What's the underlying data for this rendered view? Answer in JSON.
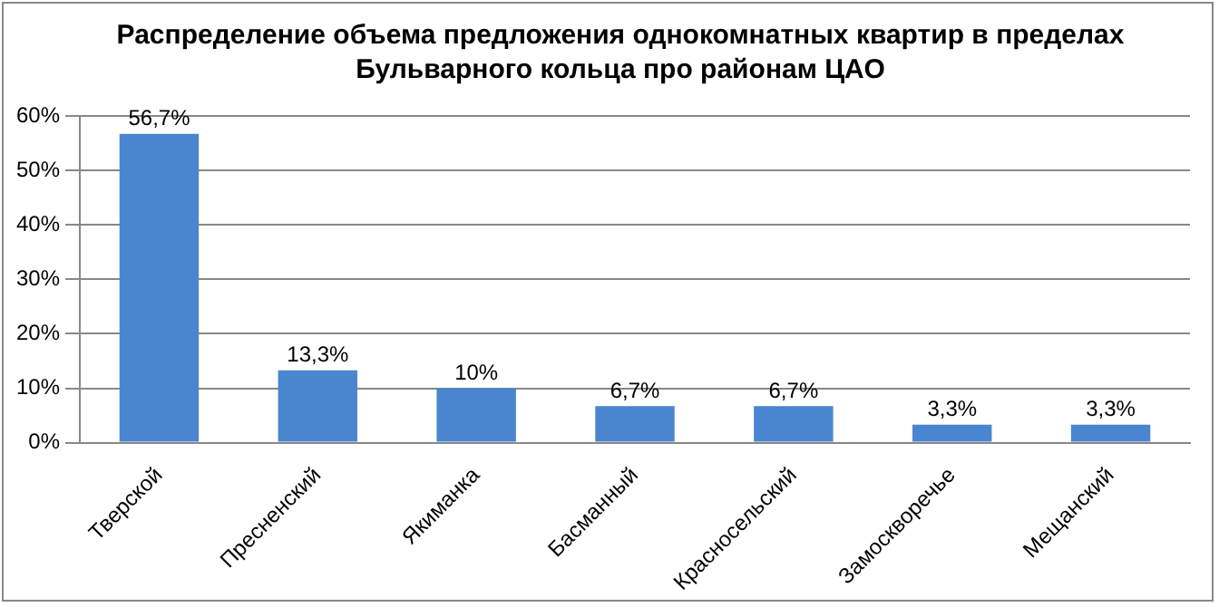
{
  "chart_data": {
    "type": "bar",
    "title": "Распределение объема предложения однокомнатных квартир в пределах Бульварного кольца про районам ЦАО",
    "categories": [
      "Тверской",
      "Пресненский",
      "Якиманка",
      "Басманный",
      "Красносельский",
      "Замоскворечье",
      "Мещанский"
    ],
    "values": [
      56.7,
      13.3,
      10,
      6.7,
      6.7,
      3.3,
      3.3
    ],
    "value_labels": [
      "56,7%",
      "13,3%",
      "10%",
      "6,7%",
      "6,7%",
      "3,3%",
      "3,3%"
    ],
    "color": "#4a86cf",
    "ylim": [
      0,
      60
    ],
    "yticks": [
      {
        "value": 0,
        "label": "0%"
      },
      {
        "value": 10,
        "label": "10%"
      },
      {
        "value": 20,
        "label": "20%"
      },
      {
        "value": 30,
        "label": "30%"
      },
      {
        "value": 40,
        "label": "40%"
      },
      {
        "value": 50,
        "label": "50%"
      },
      {
        "value": 60,
        "label": "60%"
      }
    ],
    "grid": "y",
    "legend": false
  }
}
